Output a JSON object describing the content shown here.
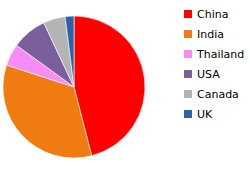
{
  "chart_data": {
    "type": "pie",
    "categories": [
      "China",
      "India",
      "Thailand",
      "USA",
      "Canada",
      "UK"
    ],
    "values": [
      46,
      34,
      5,
      8,
      5,
      2
    ],
    "colors": [
      "#ff0000",
      "#f07b10",
      "#f78cf7",
      "#7b5f9c",
      "#b4b4b4",
      "#2a64a6"
    ],
    "legend": "right"
  }
}
